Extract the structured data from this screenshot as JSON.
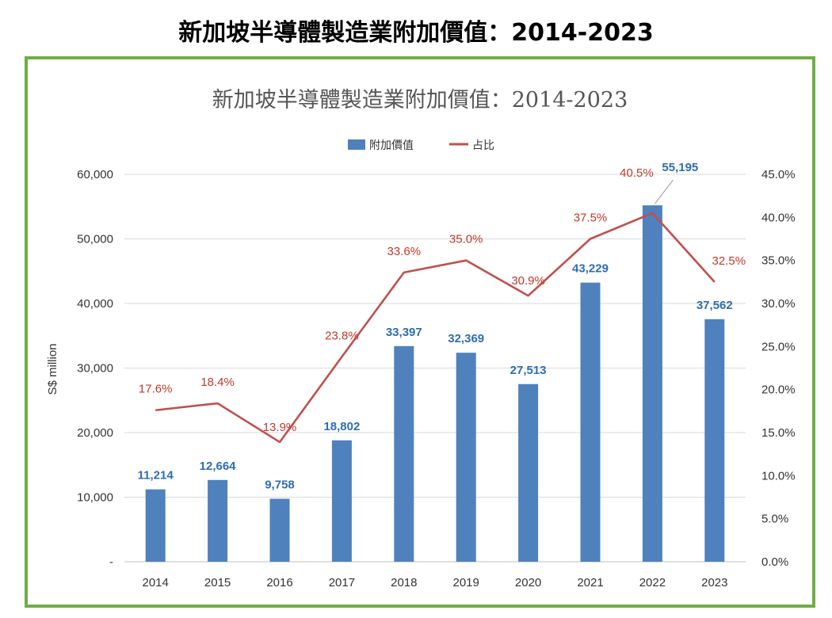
{
  "page": {
    "outer_title": "新加坡半導體製造業附加價值：2014-2023"
  },
  "colors": {
    "bar": "#4f81bd",
    "line": "#c0504d",
    "frame": "#71ad47",
    "bar_label": "#2e6db3",
    "line_label": "#c0392b"
  },
  "chart_data": {
    "type": "bar",
    "title": "新加坡半導體製造業附加價值：2014-2023",
    "categories": [
      "2014",
      "2015",
      "2016",
      "2017",
      "2018",
      "2019",
      "2020",
      "2021",
      "2022",
      "2023"
    ],
    "series": [
      {
        "name": "附加價值",
        "type": "bar",
        "axis": "left",
        "values": [
          11214,
          12664,
          9758,
          18802,
          33397,
          32369,
          27513,
          43229,
          55195,
          37562
        ],
        "labels": [
          "11,214",
          "12,664",
          "9,758",
          "18,802",
          "33,397",
          "32,369",
          "27,513",
          "43,229",
          "55,195",
          "37,562"
        ]
      },
      {
        "name": "占比",
        "type": "line",
        "axis": "right",
        "values": [
          17.6,
          18.4,
          13.9,
          23.8,
          33.6,
          35.0,
          30.9,
          37.5,
          40.5,
          32.5
        ],
        "labels": [
          "17.6%",
          "18.4%",
          "13.9%",
          "23.8%",
          "33.6%",
          "35.0%",
          "30.9%",
          "37.5%",
          "40.5%",
          "32.5%"
        ]
      }
    ],
    "ylabel": "S$ million",
    "ylim": [
      0,
      60000
    ],
    "yticks": [
      "-",
      "10,000",
      "20,000",
      "30,000",
      "40,000",
      "50,000",
      "60,000"
    ],
    "y2lim": [
      0,
      45
    ],
    "y2ticks": [
      "0.0%",
      "5.0%",
      "10.0%",
      "15.0%",
      "20.0%",
      "25.0%",
      "30.0%",
      "35.0%",
      "40.0%",
      "45.0%"
    ],
    "grid": true,
    "legend": "top-center"
  }
}
